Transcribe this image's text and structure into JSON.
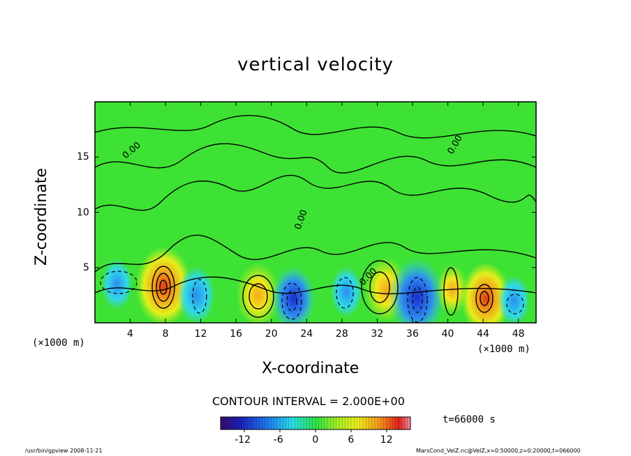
{
  "chart_data": {
    "type": "heatmap",
    "title": "vertical velocity",
    "xlabel": "X-coordinate",
    "ylabel": "Z-coordinate",
    "x_unit_label": "(×1000 m)",
    "xlim": [
      0,
      50
    ],
    "ylim": [
      0,
      20
    ],
    "x_ticks": [
      "4",
      "8",
      "12",
      "16",
      "20",
      "24",
      "28",
      "32",
      "36",
      "40",
      "44",
      "48"
    ],
    "y_ticks": [
      "5",
      "10",
      "15"
    ],
    "contour_label": "0.00",
    "contour_interval_text": "CONTOUR INTERVAL = 2.000E+00",
    "colorbar": {
      "range": [
        -16,
        16
      ],
      "ticks": [
        "-12",
        "-6",
        "0",
        "6",
        "12"
      ]
    },
    "features": [
      {
        "x": 2.5,
        "z": 3.5,
        "value": -4,
        "kind": "downdraft"
      },
      {
        "x": 7.8,
        "z": 3.3,
        "value": 12,
        "kind": "updraft"
      },
      {
        "x": 11.5,
        "z": 2.5,
        "value": -6,
        "kind": "downdraft"
      },
      {
        "x": 18.5,
        "z": 2.5,
        "value": 8,
        "kind": "updraft"
      },
      {
        "x": 22.5,
        "z": 2.2,
        "value": -8,
        "kind": "downdraft"
      },
      {
        "x": 28.5,
        "z": 2.8,
        "value": -4,
        "kind": "downdraft"
      },
      {
        "x": 33,
        "z": 3,
        "value": 8,
        "kind": "updraft"
      },
      {
        "x": 36.5,
        "z": 2.3,
        "value": -12,
        "kind": "downdraft"
      },
      {
        "x": 40.5,
        "z": 3,
        "value": 4,
        "kind": "updraft"
      },
      {
        "x": 44.3,
        "z": 2.2,
        "value": 10,
        "kind": "updraft"
      },
      {
        "x": 47.5,
        "z": 2,
        "value": -4,
        "kind": "downdraft"
      }
    ],
    "time_label": "t=66000 s"
  },
  "footer": {
    "left": "/usr/bin/gpview   2008-11-21",
    "right": "MarsCond_VelZ.nc@VelZ,x=0:50000,z=0:20000,t=066000"
  }
}
